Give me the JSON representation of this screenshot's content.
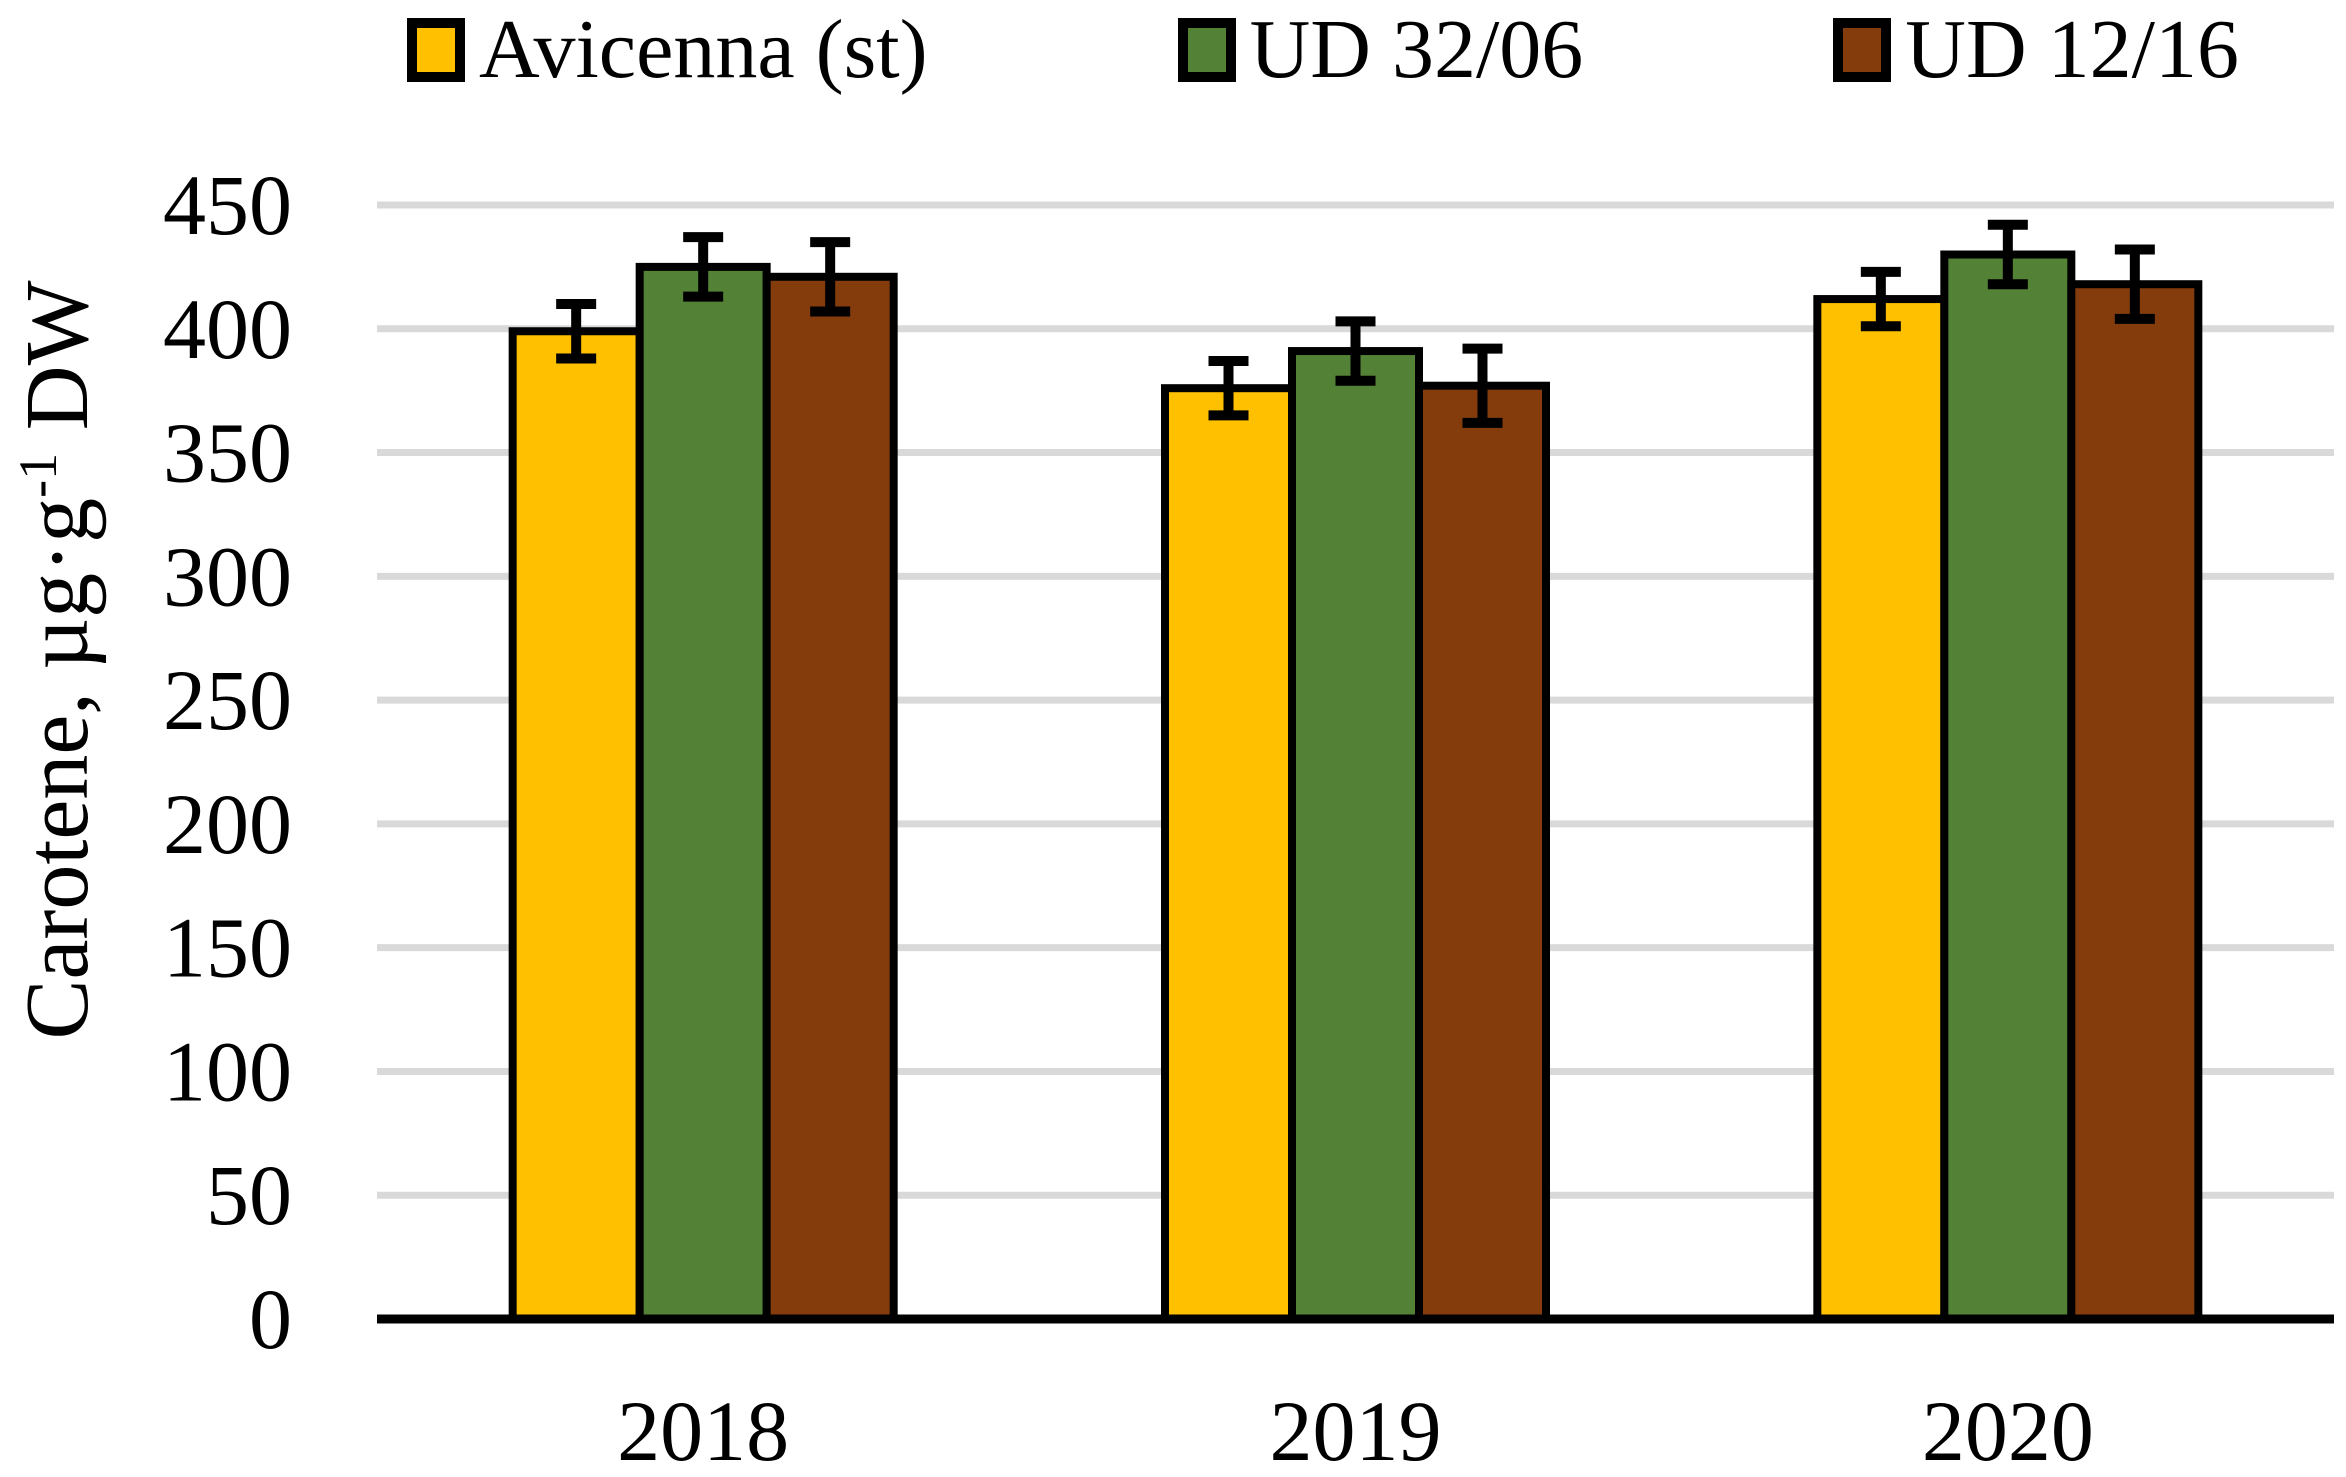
{
  "chart_data": {
    "type": "bar",
    "title": "",
    "categories": [
      "2018",
      "2019",
      "2020"
    ],
    "series": [
      {
        "name": "Avicenna (st)",
        "color": "#FFC000",
        "values": [
          399,
          376,
          412
        ],
        "errors": [
          11,
          11,
          11
        ]
      },
      {
        "name": "UD 32/06",
        "color": "#538135",
        "values": [
          425,
          391,
          430
        ],
        "errors": [
          12,
          12,
          12
        ]
      },
      {
        "name": "UD 12/16",
        "color": "#843C0C",
        "values": [
          421,
          377,
          418
        ],
        "errors": [
          14,
          15,
          14
        ]
      }
    ],
    "xlabel": "",
    "ylabel": "Carotene, µg·g⁻¹ DW",
    "ylim": [
      0,
      450
    ],
    "ytick_step": 50,
    "grid": "horizontal",
    "gridline_color": "#D9D9D9",
    "axis_color": "#000000",
    "error_bar_color": "#000000",
    "bar_border_color": "#000000",
    "legend_position": "top"
  },
  "ylabel_parts": {
    "main": "Carotene, µg·g",
    "sup": "-1",
    "end": " DW"
  }
}
